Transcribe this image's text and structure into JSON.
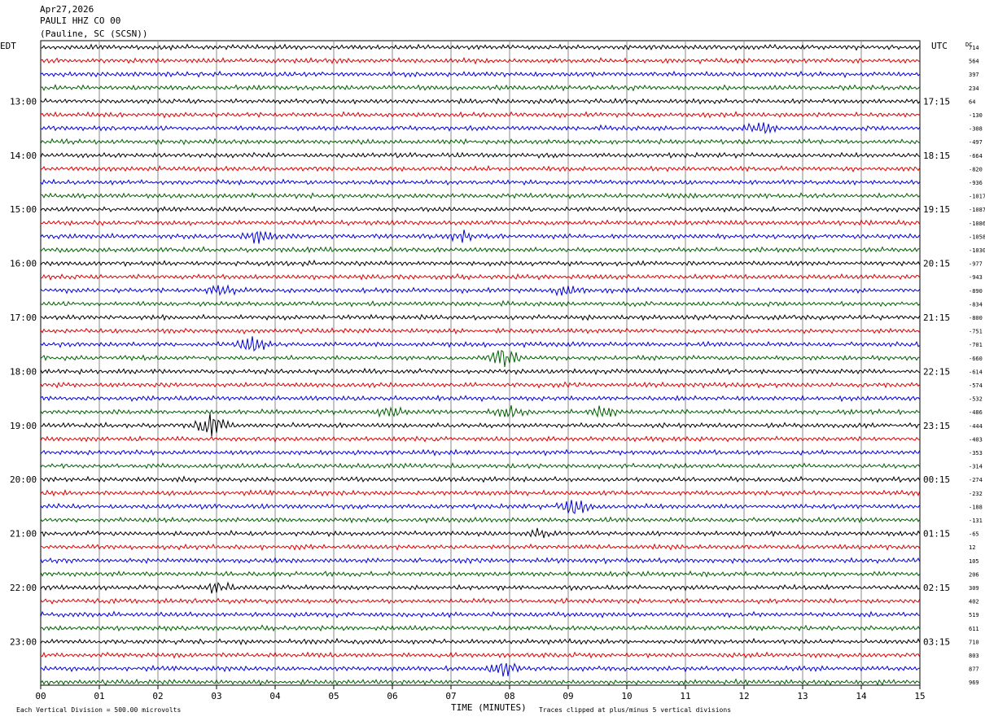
{
  "header": {
    "date": "Apr27,2026",
    "station": "PAULI HHZ CO 00",
    "location": "(Pauline, SC (SCSN))"
  },
  "left_tz": "EDT",
  "right_tz": "UTC",
  "dc_label": "DC",
  "footer": {
    "scale_note": "Each Vertical Division =  500.00 microvolts",
    "xlabel": "TIME (MINUTES)",
    "clip_note": "Traces clipped at plus/minus 5 vertical divisions"
  },
  "colors": {
    "trace_cycle": [
      "#000000",
      "#e00000",
      "#0000e0",
      "#006000"
    ],
    "grid": "#888888"
  },
  "chart_data": {
    "type": "line",
    "title": "",
    "xlabel": "TIME (MINUTES)",
    "x_ticks": [
      "00",
      "01",
      "02",
      "03",
      "04",
      "05",
      "06",
      "07",
      "08",
      "09",
      "10",
      "11",
      "12",
      "13",
      "14",
      "15"
    ],
    "xlim": [
      0,
      15
    ],
    "row_count": 48,
    "left_hour_labels": [
      {
        "row": 4,
        "text": "13:00"
      },
      {
        "row": 8,
        "text": "14:00"
      },
      {
        "row": 12,
        "text": "15:00"
      },
      {
        "row": 16,
        "text": "16:00"
      },
      {
        "row": 20,
        "text": "17:00"
      },
      {
        "row": 24,
        "text": "18:00"
      },
      {
        "row": 28,
        "text": "19:00"
      },
      {
        "row": 32,
        "text": "20:00"
      },
      {
        "row": 36,
        "text": "21:00"
      },
      {
        "row": 40,
        "text": "22:00"
      },
      {
        "row": 44,
        "text": "23:00"
      }
    ],
    "right_hour_labels": [
      {
        "row": 4,
        "text": "17:15"
      },
      {
        "row": 8,
        "text": "18:15"
      },
      {
        "row": 12,
        "text": "19:15"
      },
      {
        "row": 16,
        "text": "20:15"
      },
      {
        "row": 20,
        "text": "21:15"
      },
      {
        "row": 24,
        "text": "22:15"
      },
      {
        "row": 28,
        "text": "23:15"
      },
      {
        "row": 32,
        "text": "00:15"
      },
      {
        "row": 36,
        "text": "01:15"
      },
      {
        "row": 40,
        "text": "02:15"
      },
      {
        "row": 44,
        "text": "03:15"
      }
    ],
    "dc_offsets": [
      "714",
      "564",
      "397",
      "234",
      "64",
      "-130",
      "-308",
      "-497",
      "-664",
      "-820",
      "-936",
      "-1017",
      "-1087",
      "-1086",
      "-1058",
      "-1030",
      "-977",
      "-943",
      "-890",
      "-834",
      "-800",
      "-751",
      "-701",
      "-660",
      "-614",
      "-574",
      "-532",
      "-486",
      "-444",
      "-403",
      "-353",
      "-314",
      "-274",
      "-232",
      "-188",
      "-131",
      "-65",
      "12",
      "105",
      "206",
      "309",
      "402",
      "519",
      "611",
      "710",
      "803",
      "877",
      "969"
    ],
    "events": [
      {
        "row": 6,
        "minute": 12.3,
        "amp": 6
      },
      {
        "row": 14,
        "minute": 3.7,
        "amp": 6
      },
      {
        "row": 14,
        "minute": 7.2,
        "amp": 4
      },
      {
        "row": 18,
        "minute": 3.1,
        "amp": 5
      },
      {
        "row": 18,
        "minute": 9.0,
        "amp": 5
      },
      {
        "row": 22,
        "minute": 3.6,
        "amp": 7
      },
      {
        "row": 23,
        "minute": 7.9,
        "amp": 9
      },
      {
        "row": 27,
        "minute": 6.0,
        "amp": 5
      },
      {
        "row": 27,
        "minute": 8.0,
        "amp": 5
      },
      {
        "row": 27,
        "minute": 9.6,
        "amp": 5
      },
      {
        "row": 28,
        "minute": 2.9,
        "amp": 9
      },
      {
        "row": 34,
        "minute": 9.1,
        "amp": 8
      },
      {
        "row": 36,
        "minute": 8.5,
        "amp": 4
      },
      {
        "row": 40,
        "minute": 3.0,
        "amp": 5
      },
      {
        "row": 46,
        "minute": 7.9,
        "amp": 6
      }
    ]
  }
}
